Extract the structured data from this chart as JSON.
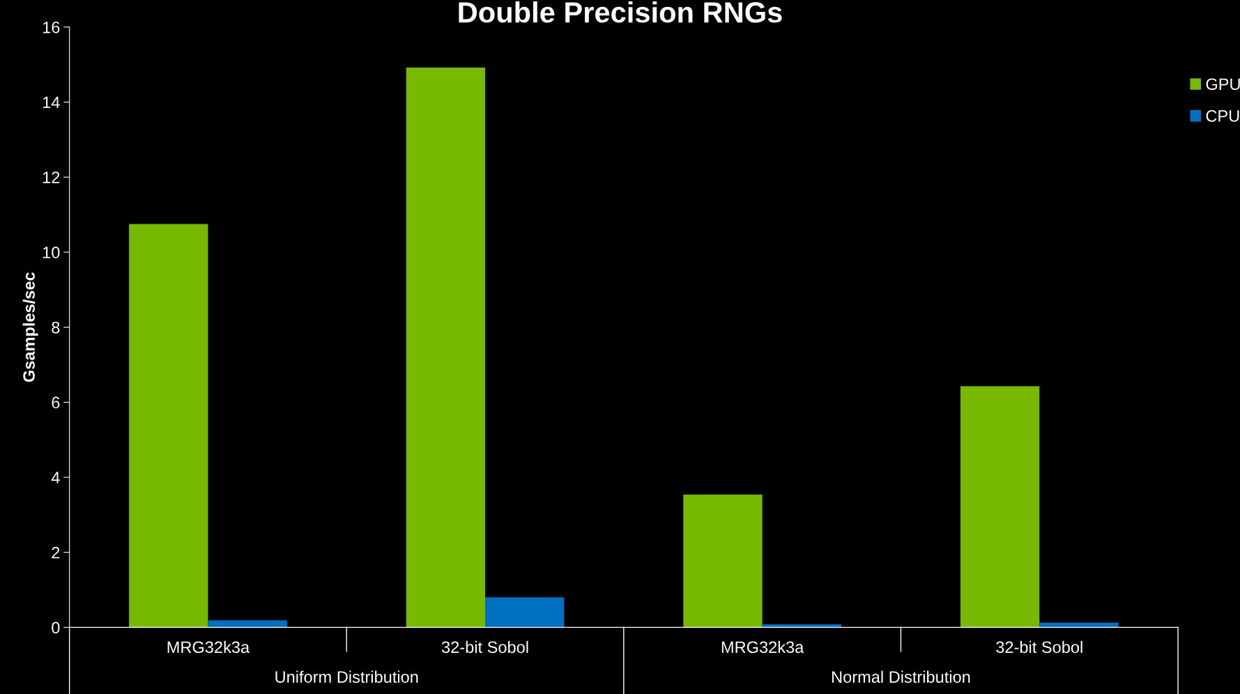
{
  "chart_data": {
    "type": "bar",
    "title": "Double Precision RNGs",
    "ylabel": "Gsamples/sec",
    "categories": [
      "MRG32k3a",
      "32-bit Sobol",
      "MRG32k3a",
      "32-bit Sobol"
    ],
    "series": [
      {
        "name": "GPU",
        "color": "#76b900",
        "values": [
          10.75,
          14.92,
          3.54,
          6.43
        ]
      },
      {
        "name": "CPU",
        "color": "#0070c0",
        "values": [
          0.19,
          0.8,
          0.08,
          0.13
        ]
      }
    ],
    "annotations": [
      "Uniform Distribution",
      "Normal Distribution"
    ],
    "ylim": [
      0,
      16
    ],
    "yticks": [
      0,
      2,
      4,
      6,
      8,
      10,
      12,
      14,
      16
    ],
    "grid": false,
    "legend": "top right"
  }
}
